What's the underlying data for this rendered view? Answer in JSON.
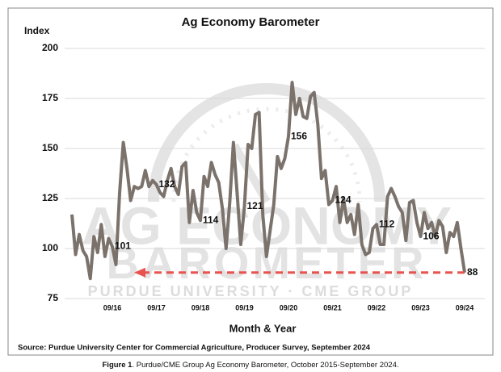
{
  "chart_data": {
    "type": "line",
    "title": "Ag Economy Barometer",
    "y_label": "Index",
    "x_label": "Month & Year",
    "source": "Source: Purdue University Center for Commercial Agriculture, Producer Survey, September 2024",
    "caption": {
      "label": "Figure 1",
      "text": ". Purdue/CME Group Ag Economy Barometer, October 2015-September 2024."
    },
    "watermark": {
      "line1": "AG ECONOMY",
      "line2": "BAROMETER",
      "line3": "PURDUE UNIVERSITY · CME GROUP"
    },
    "categories": [
      null,
      null,
      null,
      null,
      null,
      null,
      null,
      null,
      null,
      null,
      null,
      "09/16",
      null,
      null,
      null,
      null,
      null,
      null,
      null,
      null,
      null,
      null,
      null,
      "09/17",
      null,
      null,
      null,
      null,
      null,
      null,
      null,
      null,
      null,
      null,
      null,
      "09/18",
      null,
      null,
      null,
      null,
      null,
      null,
      null,
      null,
      null,
      null,
      null,
      "09/19",
      null,
      null,
      null,
      null,
      null,
      null,
      null,
      null,
      null,
      null,
      null,
      "09/20",
      null,
      null,
      null,
      null,
      null,
      null,
      null,
      null,
      null,
      null,
      null,
      "09/21",
      null,
      null,
      null,
      null,
      null,
      null,
      null,
      null,
      null,
      null,
      null,
      "09/22",
      null,
      null,
      null,
      null,
      null,
      null,
      null,
      null,
      null,
      null,
      null,
      "09/23",
      null,
      null,
      null,
      null,
      null,
      null,
      null,
      null,
      null,
      null,
      null,
      "09/24"
    ],
    "series": [
      {
        "name": "Ag Economy Barometer",
        "color": "#7b726c",
        "values": [
          117,
          97,
          107,
          99,
          96,
          85,
          106,
          98,
          112,
          96,
          105,
          101,
          92,
          128,
          153,
          140,
          124,
          131,
          130,
          131,
          139,
          131,
          134,
          132,
          128,
          126,
          134,
          140,
          131,
          127,
          141,
          143,
          113,
          129,
          118,
          114,
          136,
          131,
          143,
          137,
          133,
          120,
          100,
          123,
          153,
          128,
          102,
          121,
          152,
          150,
          167,
          168,
          117,
          96,
          109,
          122,
          146,
          140,
          145,
          156,
          183,
          167,
          175,
          166,
          165,
          176,
          178,
          162,
          135,
          139,
          122,
          124,
          131,
          113,
          125,
          113,
          117,
          107,
          122,
          102,
          97,
          98,
          110,
          112,
          102,
          102,
          126,
          130,
          126,
          121,
          118,
          104,
          123,
          124,
          113,
          106,
          118,
          110,
          113,
          106,
          114,
          111,
          98,
          108,
          106,
          113,
          100,
          88
        ],
        "value_labels": [
          null,
          null,
          null,
          null,
          null,
          null,
          null,
          null,
          null,
          null,
          null,
          "101",
          null,
          null,
          null,
          null,
          null,
          null,
          null,
          null,
          null,
          null,
          null,
          "132",
          null,
          null,
          null,
          null,
          null,
          null,
          null,
          null,
          null,
          null,
          null,
          "114",
          null,
          null,
          null,
          null,
          null,
          null,
          null,
          null,
          null,
          null,
          null,
          "121",
          null,
          null,
          null,
          null,
          null,
          null,
          null,
          null,
          null,
          null,
          null,
          "156",
          null,
          null,
          null,
          null,
          null,
          null,
          null,
          null,
          null,
          null,
          null,
          "124",
          null,
          null,
          null,
          null,
          null,
          null,
          null,
          null,
          null,
          null,
          null,
          "112",
          null,
          null,
          null,
          null,
          null,
          null,
          null,
          null,
          null,
          null,
          null,
          "106",
          null,
          null,
          null,
          null,
          null,
          null,
          null,
          null,
          null,
          null,
          null,
          "88"
        ]
      }
    ],
    "ylim": [
      75,
      200
    ],
    "yticks": [
      75,
      100,
      125,
      150,
      175,
      200
    ],
    "grid": true,
    "arrow_color": "#e8534f"
  }
}
